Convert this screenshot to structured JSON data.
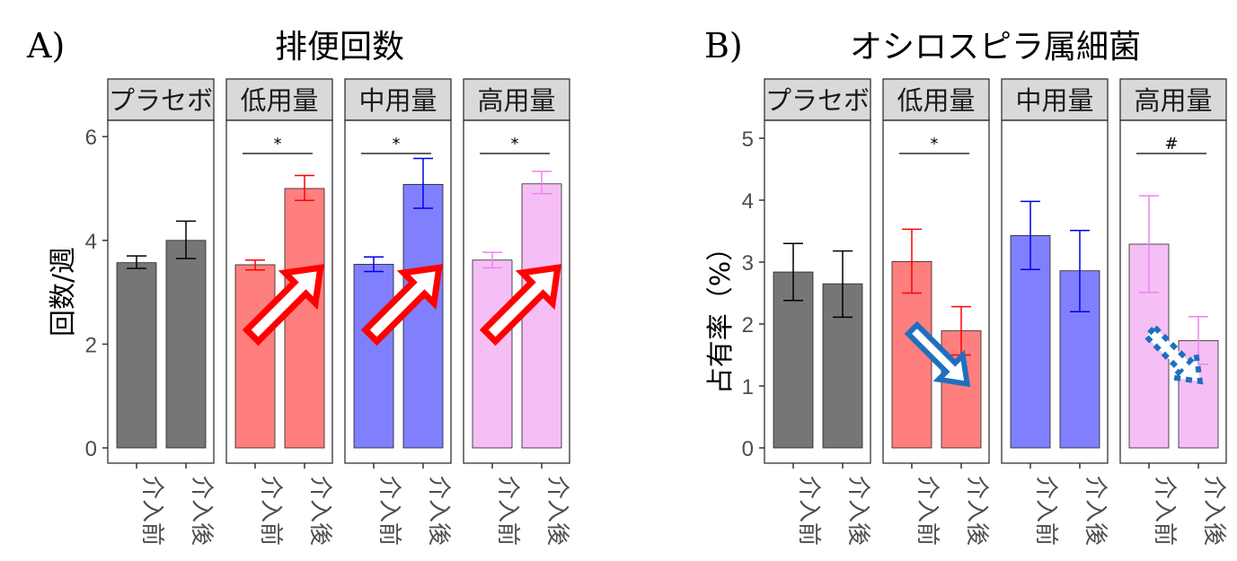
{
  "chart_data": [
    {
      "type": "bar",
      "panel_label": "A)",
      "title": "排便回数",
      "ylabel": "回数/週",
      "ylim": [
        0,
        6.4
      ],
      "yticks": [
        0,
        2,
        4,
        6
      ],
      "categories": [
        "介入前",
        "介入後"
      ],
      "facets": [
        {
          "name": "プラセボ",
          "color": "#767676",
          "values": [
            3.57,
            4.0
          ],
          "err_low": [
            3.46,
            3.65
          ],
          "err_high": [
            3.7,
            4.37
          ],
          "significance": ""
        },
        {
          "name": "低用量",
          "color": "#ff7f7f",
          "err_color": "#ff0000",
          "values": [
            3.53,
            5.0
          ],
          "err_low": [
            3.43,
            4.77
          ],
          "err_high": [
            3.62,
            5.25
          ],
          "significance": "*",
          "arrow": "up"
        },
        {
          "name": "中用量",
          "color": "#8080ff",
          "err_color": "#0000e6",
          "values": [
            3.54,
            5.08
          ],
          "err_low": [
            3.4,
            4.62
          ],
          "err_high": [
            3.68,
            5.58
          ],
          "significance": "*",
          "arrow": "up"
        },
        {
          "name": "高用量",
          "color": "#f5bff5",
          "err_color": "#ee82ee",
          "values": [
            3.62,
            5.09
          ],
          "err_low": [
            3.47,
            4.9
          ],
          "err_high": [
            3.77,
            5.33
          ],
          "significance": "*",
          "arrow": "up"
        }
      ]
    },
    {
      "type": "bar",
      "panel_label": "B)",
      "title": "オシロスピラ属細菌",
      "ylabel": "占有率（%）",
      "ylim": [
        0,
        5.3
      ],
      "yticks": [
        0,
        1,
        2,
        3,
        4,
        5
      ],
      "categories": [
        "介入前",
        "介入後"
      ],
      "facets": [
        {
          "name": "プラセボ",
          "color": "#767676",
          "values": [
            2.84,
            2.65
          ],
          "err_low": [
            2.38,
            2.11
          ],
          "err_high": [
            3.3,
            3.18
          ],
          "significance": ""
        },
        {
          "name": "低用量",
          "color": "#ff7f7f",
          "err_color": "#ff0000",
          "values": [
            3.01,
            1.89
          ],
          "err_low": [
            2.5,
            1.5
          ],
          "err_high": [
            3.53,
            2.28
          ],
          "significance": "*",
          "arrow": "down"
        },
        {
          "name": "中用量",
          "color": "#8080ff",
          "err_color": "#0000e6",
          "values": [
            3.43,
            2.86
          ],
          "err_low": [
            2.88,
            2.2
          ],
          "err_high": [
            3.98,
            3.51
          ],
          "significance": ""
        },
        {
          "name": "高用量",
          "color": "#f5bff5",
          "err_color": "#ee82ee",
          "values": [
            3.29,
            1.73
          ],
          "err_low": [
            2.51,
            1.35
          ],
          "err_high": [
            4.07,
            2.12
          ],
          "significance": "#",
          "arrow": "down-dashed"
        }
      ]
    }
  ]
}
